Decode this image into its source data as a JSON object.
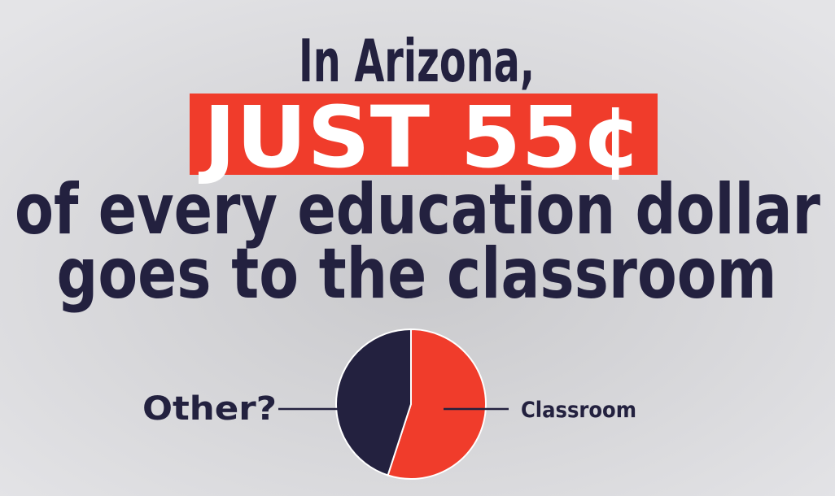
{
  "chart_data": {
    "type": "pie",
    "title": [
      "In Arizona,",
      "JUST 55¢",
      "of every education dollar",
      "goes to the classroom"
    ],
    "categories": [
      "Classroom",
      "Other?"
    ],
    "values": [
      55,
      45
    ],
    "colors": [
      "#f03c2b",
      "#23213f"
    ]
  }
}
